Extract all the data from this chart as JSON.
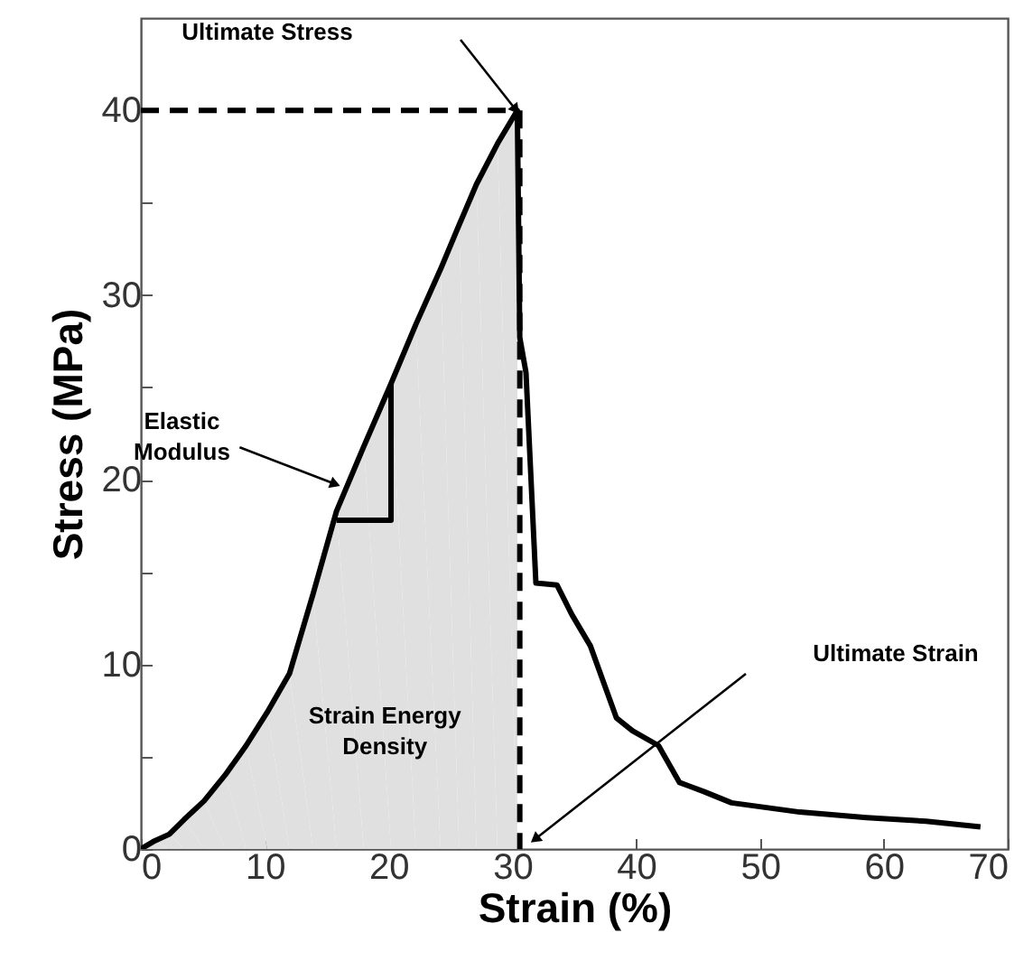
{
  "chart_data": {
    "type": "line",
    "xlabel": "Strain (%)",
    "ylabel": "Stress (MPa)",
    "xlim": [
      0,
      70
    ],
    "ylim": [
      0,
      45
    ],
    "xticks": [
      0,
      10,
      20,
      30,
      40,
      50,
      60,
      70
    ],
    "yticks": [
      0,
      {
        "value": 5,
        "label": null
      },
      10,
      {
        "value": 15,
        "label": null
      },
      20,
      {
        "value": 25,
        "label": null
      },
      30,
      {
        "value": 35,
        "label": null
      },
      40
    ],
    "line_style": "solid",
    "series": [
      {
        "type": "area",
        "color": "#e0e0e0",
        "x": [
          0,
          1,
          2.3,
          3.5,
          5.1,
          6.8,
          8.5,
          10.2,
          12,
          13.9,
          15.8,
          18,
          20.2,
          22.2,
          24.2,
          25.7,
          27.1,
          28.8,
          30.4
        ],
        "values": [
          0,
          0.4,
          0.8,
          1.6,
          2.6,
          4,
          5.6,
          7.4,
          9.5,
          13.8,
          18.3,
          21.8,
          25.2,
          28.4,
          31.4,
          33.8,
          36,
          38.2,
          40
        ]
      },
      {
        "color": "#000000",
        "x": [
          0,
          1,
          2.3,
          3.5,
          5.1,
          6.8,
          8.5,
          10.2,
          12,
          13.9,
          15.8,
          18,
          20.2,
          22.2,
          24.2,
          25.7,
          27.1,
          28.8,
          30.4,
          30.6,
          31.1,
          31.9,
          33.6,
          34.8,
          36.3,
          38.4,
          39.7,
          41.8,
          43.5,
          45.5,
          47.7,
          53.2,
          58.6,
          63.4,
          67.8
        ],
        "values": [
          0,
          0.4,
          0.8,
          1.6,
          2.6,
          4,
          5.6,
          7.4,
          9.5,
          13.8,
          18.3,
          21.8,
          25.2,
          28.4,
          31.4,
          33.8,
          36,
          38.2,
          40,
          27.7,
          25.8,
          14.4,
          14.3,
          12.7,
          11,
          7.1,
          6.4,
          5.6,
          3.6,
          3.1,
          2.5,
          2,
          1.7,
          1.5,
          1.2
        ]
      },
      {
        "color": "#000000",
        "line_style": "dashed",
        "x": [
          0,
          30.4
        ],
        "values": [
          40,
          40
        ]
      },
      {
        "color": "#000000",
        "line_style": "dashed",
        "x": [
          30.6,
          30.6
        ],
        "values": [
          40,
          0
        ]
      },
      {
        "color": "#000000",
        "x": [
          15.8,
          20.2,
          20.2
        ],
        "values": [
          17.8,
          17.8,
          25.2
        ]
      }
    ],
    "annotations": [
      "Ultimate Stress",
      {
        "text": "Elastic Modulus",
        "x": 16,
        "y": 19.6
      },
      "Ultimate Strain",
      {
        "text": "Strain Energy Density",
        "x": 19.7,
        "y": 6.4
      }
    ]
  }
}
